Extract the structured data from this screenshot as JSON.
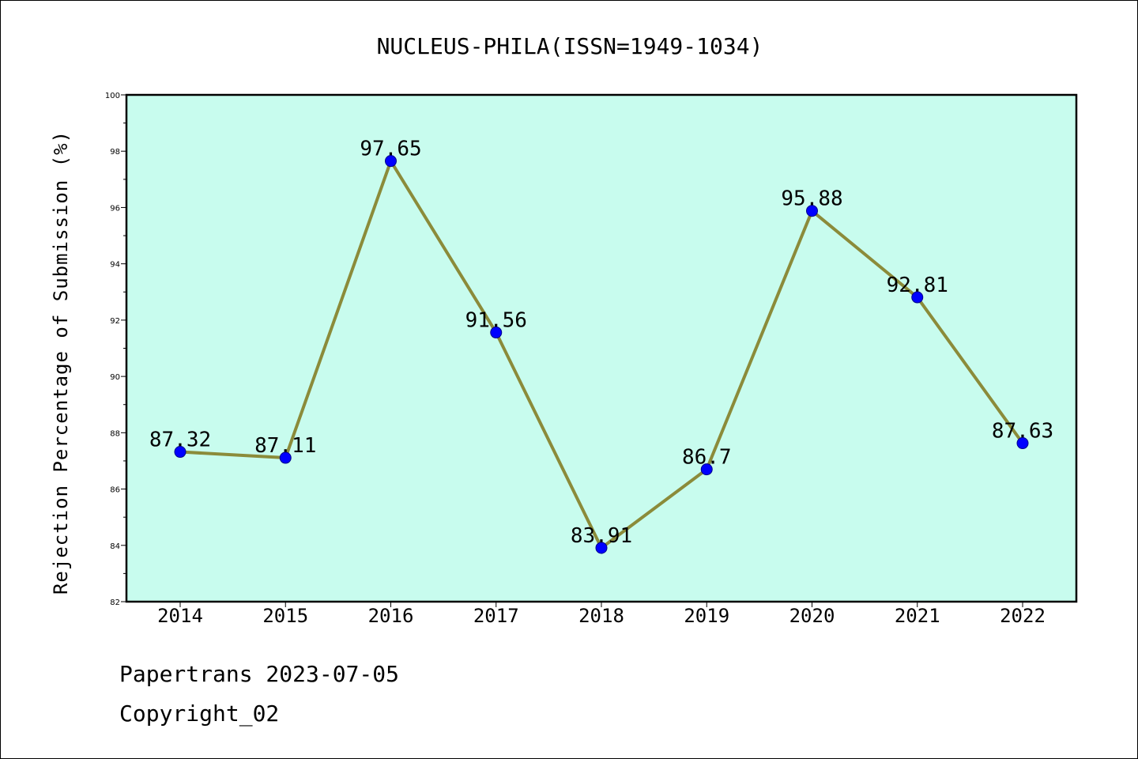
{
  "chart_data": {
    "type": "line",
    "title": "NUCLEUS-PHILA(ISSN=1949-1034)",
    "xlabel": "",
    "ylabel": "Rejection Percentage of Submission (%)",
    "categories": [
      "2014",
      "2015",
      "2016",
      "2017",
      "2018",
      "2019",
      "2020",
      "2021",
      "2022"
    ],
    "series": [
      {
        "values": [
          87.32,
          87.11,
          97.65,
          91.56,
          83.91,
          86.7,
          95.88,
          92.81,
          87.63
        ],
        "data_labels": [
          "87.32",
          "87.11",
          "97.65",
          "91.56",
          "83.91",
          "86.7",
          "95.88",
          "92.81",
          "87.63"
        ]
      }
    ],
    "ylim": [
      82,
      100
    ],
    "yticks": [
      "82",
      "84",
      "86",
      "88",
      "90",
      "92",
      "94",
      "96",
      "98",
      "100"
    ],
    "grid": false,
    "legend": "none",
    "colors": {
      "plot_background": "#c8fcee",
      "line": "#8b8b3a",
      "marker": "#0000ff",
      "marker_edge": "#00008b"
    }
  },
  "footer": {
    "line1": "Papertrans 2023-07-05",
    "line2": "Copyright_02"
  }
}
